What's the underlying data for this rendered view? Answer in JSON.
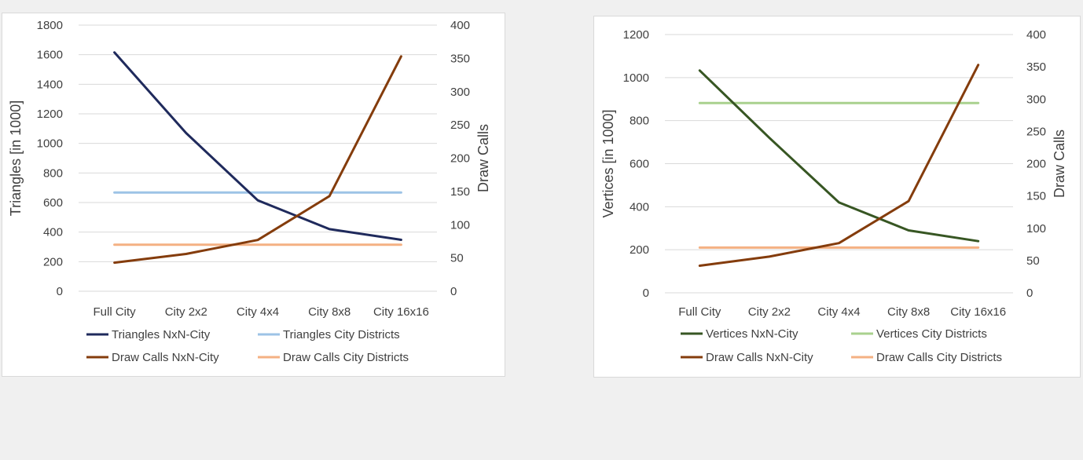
{
  "chart_data": [
    {
      "type": "line",
      "categories": [
        "Full City",
        "City 2x2",
        "City 4x4",
        "City 8x8",
        "City 16x16"
      ],
      "ylabel": "Triangles [in 1000]",
      "y2label": "Draw Calls",
      "ylim": [
        0,
        1800
      ],
      "y2lim": [
        0,
        400
      ],
      "yticks": [
        "0",
        "200",
        "400",
        "600",
        "800",
        "1000",
        "1200",
        "1400",
        "1600",
        "1800"
      ],
      "y2ticks": [
        "0",
        "50",
        "100",
        "150",
        "200",
        "250",
        "300",
        "350",
        "400"
      ],
      "grid": true,
      "legend_position": "bottom",
      "series": [
        {
          "name": "Triangles NxN-City",
          "axis": "left",
          "color": "#1f2a5c",
          "values": [
            1615,
            1070,
            615,
            420,
            348
          ]
        },
        {
          "name": "Triangles City Districts",
          "axis": "left",
          "color": "#9dc3e6",
          "values": [
            668,
            668,
            668,
            668,
            668
          ]
        },
        {
          "name": "Draw Calls NxN-City",
          "axis": "right",
          "color": "#843c0c",
          "values": [
            43,
            56,
            77,
            143,
            353
          ]
        },
        {
          "name": "Draw Calls City Districts",
          "axis": "right",
          "color": "#f4b183",
          "values": [
            70,
            70,
            70,
            70,
            70
          ]
        }
      ]
    },
    {
      "type": "line",
      "categories": [
        "Full City",
        "City 2x2",
        "City 4x4",
        "City 8x8",
        "City 16x16"
      ],
      "ylabel": "Vertices [in 1000]",
      "y2label": "Draw Calls",
      "ylim": [
        0,
        1200
      ],
      "y2lim": [
        0,
        400
      ],
      "yticks": [
        "0",
        "200",
        "400",
        "600",
        "800",
        "1000",
        "1200"
      ],
      "y2ticks": [
        "0",
        "50",
        "100",
        "150",
        "200",
        "250",
        "300",
        "350",
        "400"
      ],
      "grid": true,
      "legend_position": "bottom",
      "series": [
        {
          "name": "Vertices NxN-City",
          "axis": "left",
          "color": "#375623",
          "values": [
            1033,
            720,
            420,
            290,
            240
          ]
        },
        {
          "name": "Vertices City Districts",
          "axis": "left",
          "color": "#a9d18e",
          "values": [
            882,
            882,
            882,
            882,
            882
          ]
        },
        {
          "name": "Draw Calls NxN-City",
          "axis": "right",
          "color": "#843c0c",
          "values": [
            42,
            56,
            77,
            142,
            353
          ]
        },
        {
          "name": "Draw Calls City Districts",
          "axis": "right",
          "color": "#f4b183",
          "values": [
            70,
            70,
            70,
            70,
            70
          ]
        }
      ]
    }
  ]
}
